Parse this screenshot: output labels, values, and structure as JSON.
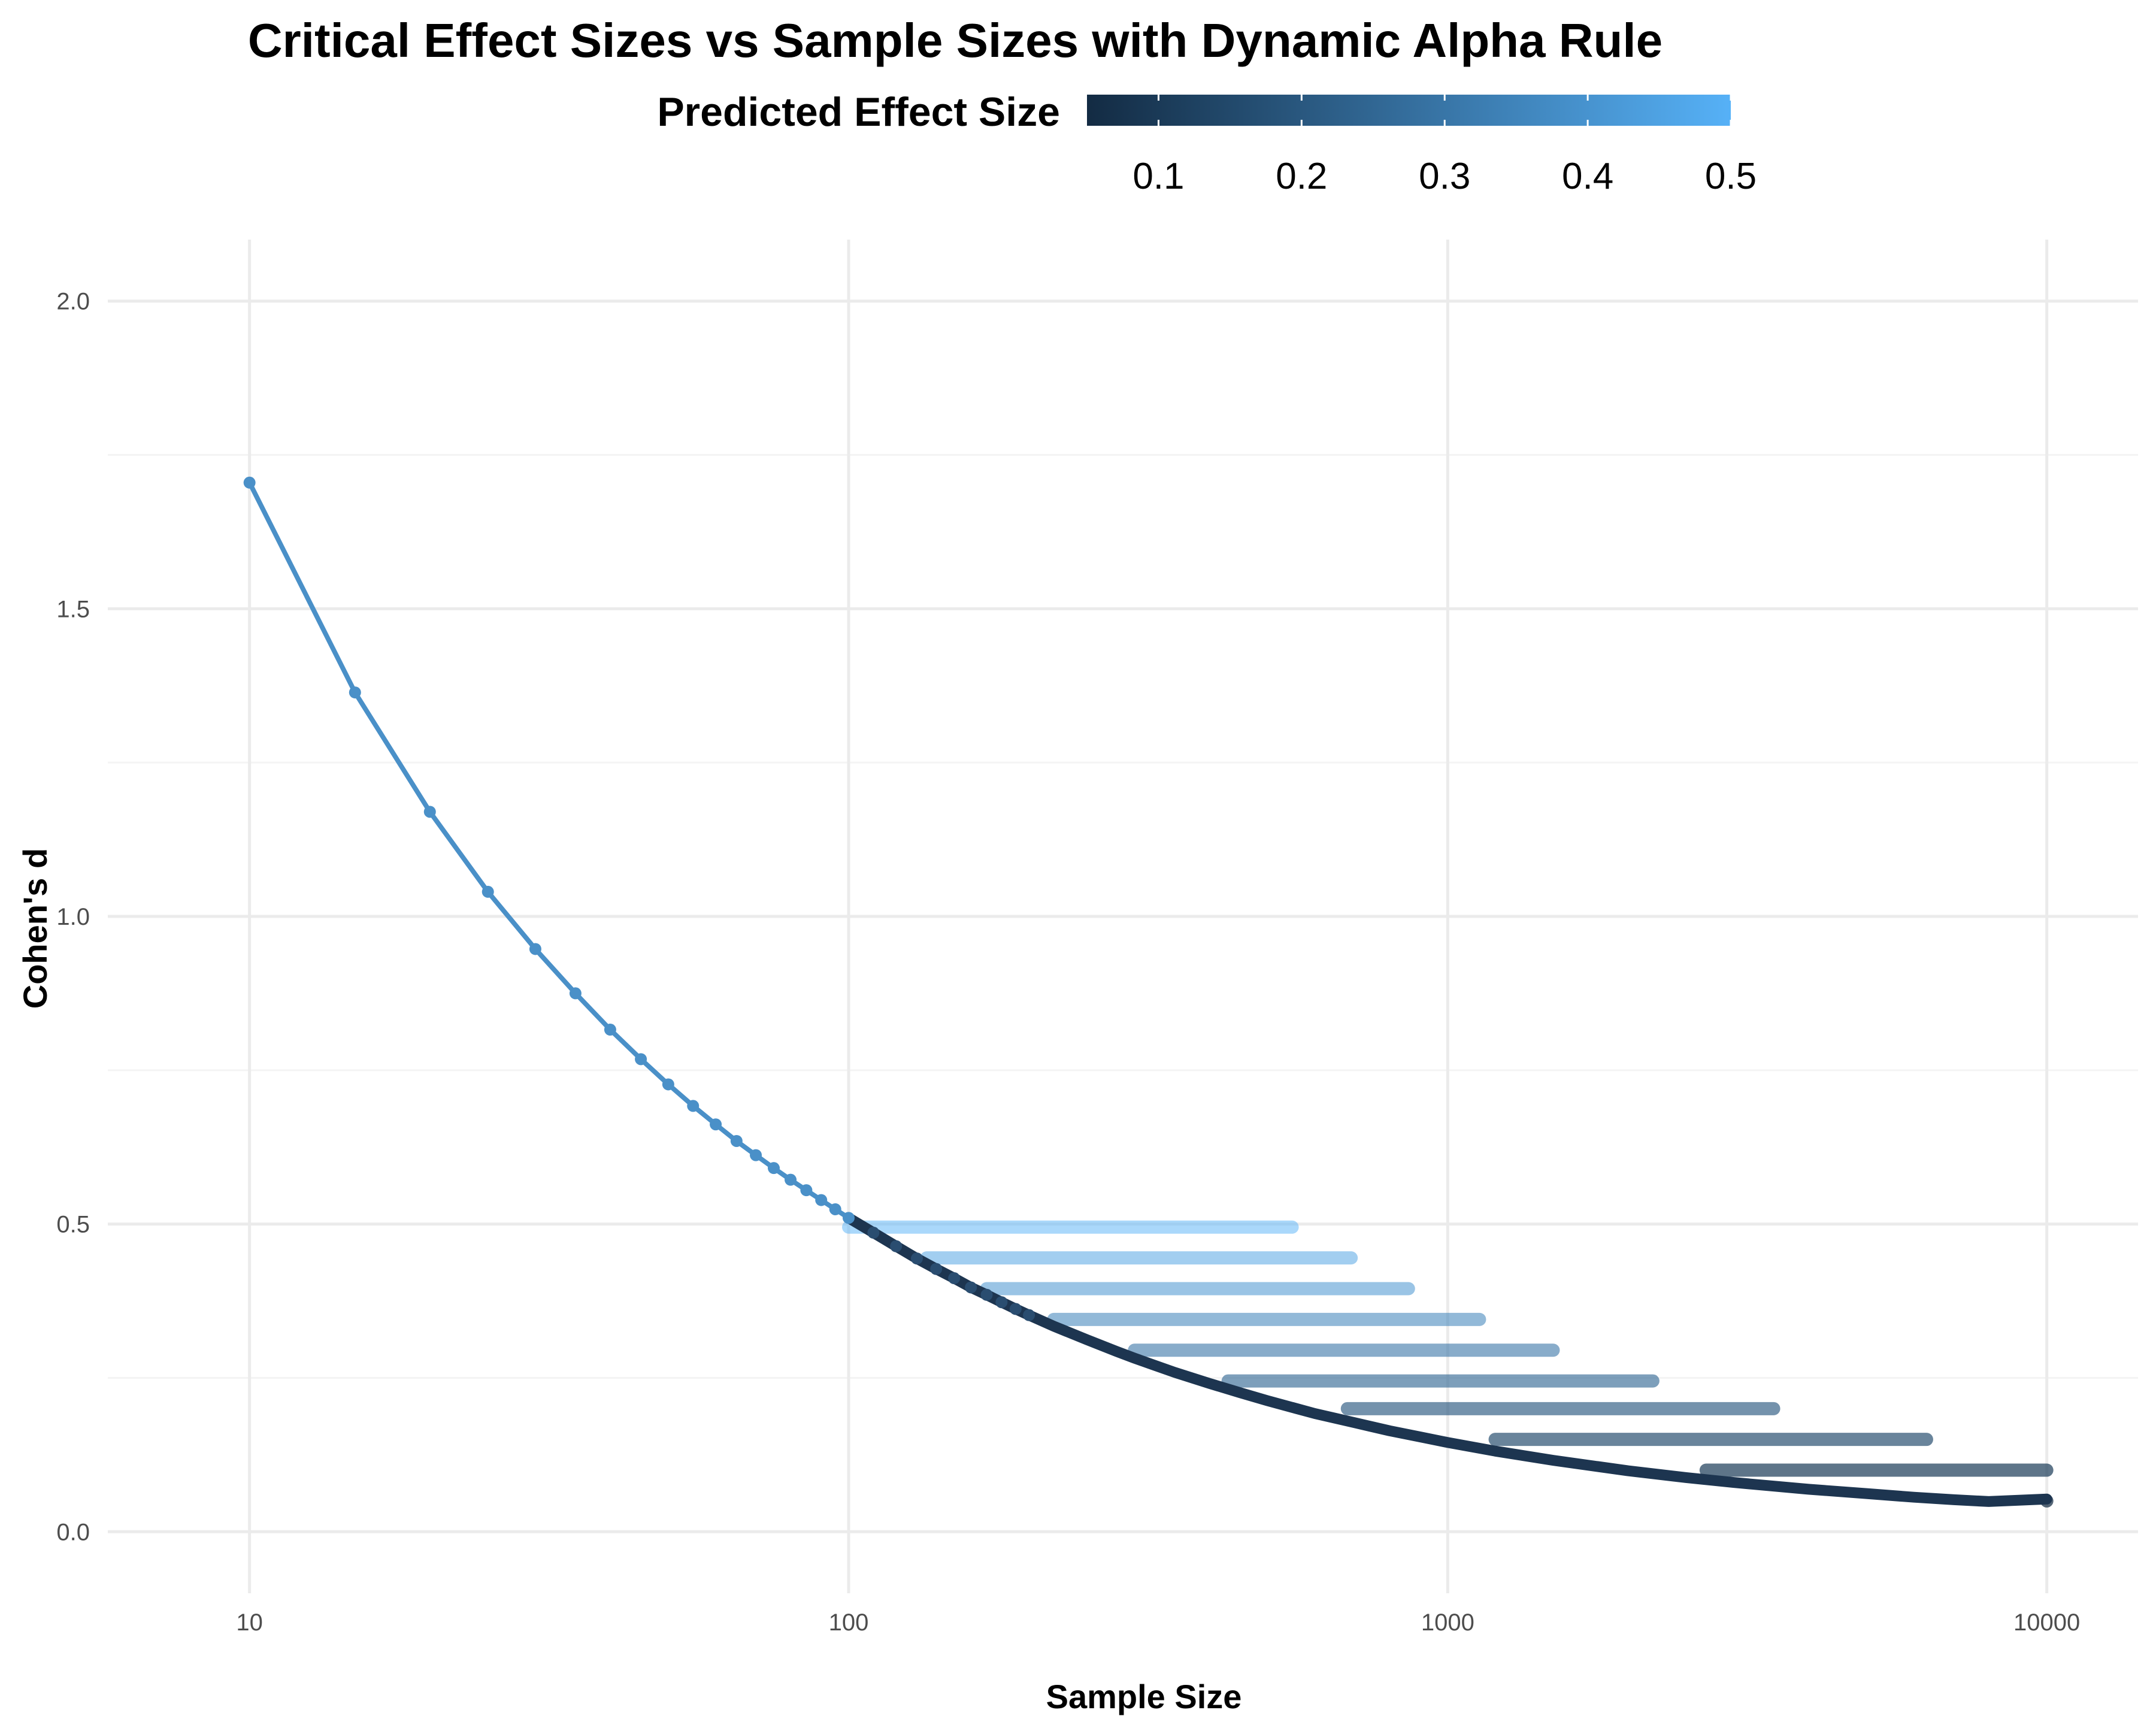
{
  "chart_data": {
    "type": "line",
    "title": "Critical Effect Sizes vs Sample Sizes with Dynamic Alpha Rule",
    "xlabel": "Sample Size",
    "ylabel": "Cohen's d",
    "x_scale": "log10",
    "xlim": [
      5.8,
      14200
    ],
    "ylim": [
      -0.1,
      2.1
    ],
    "x_ticks": [
      10,
      100,
      1000,
      10000
    ],
    "x_tick_labels": [
      "10",
      "100",
      "1000",
      "10000"
    ],
    "y_ticks": [
      0.0,
      0.5,
      1.0,
      1.5,
      2.0
    ],
    "y_tick_labels": [
      "0.0",
      "0.5",
      "1.0",
      "1.5",
      "2.0"
    ],
    "grid": true,
    "legend": {
      "title": "Predicted Effect Size",
      "placement": "top",
      "type": "colorbar",
      "range": [
        0.05,
        0.5
      ],
      "tick_values": [
        0.1,
        0.2,
        0.3,
        0.4,
        0.5
      ],
      "tick_labels": [
        "0.1",
        "0.2",
        "0.3",
        "0.4",
        "0.5"
      ],
      "colors": {
        "low": "#132B43",
        "high": "#56B1F7"
      }
    },
    "critical_curve": {
      "x": [
        10,
        15,
        20,
        25,
        30,
        35,
        40,
        45,
        50,
        55,
        60,
        65,
        70,
        75,
        80,
        85,
        90,
        95,
        100,
        110,
        120,
        130,
        140,
        150,
        160,
        170,
        180,
        190,
        200,
        220,
        250,
        280,
        300,
        350,
        400,
        450,
        500,
        600,
        700,
        800,
        900,
        1000,
        1200,
        1500,
        2000,
        2500,
        3000,
        4000,
        5000,
        6000,
        7000,
        8000,
        10000
      ],
      "y": [
        1.705,
        1.364,
        1.17,
        1.04,
        0.947,
        0.875,
        0.816,
        0.768,
        0.727,
        0.692,
        0.662,
        0.635,
        0.612,
        0.591,
        0.572,
        0.555,
        0.539,
        0.524,
        0.51,
        0.486,
        0.464,
        0.444,
        0.427,
        0.412,
        0.397,
        0.385,
        0.373,
        0.362,
        0.352,
        0.334,
        0.312,
        0.293,
        0.282,
        0.259,
        0.241,
        0.226,
        0.213,
        0.192,
        0.177,
        0.164,
        0.154,
        0.145,
        0.131,
        0.116,
        0.099,
        0.088,
        0.08,
        0.069,
        0.062,
        0.056,
        0.052,
        0.049,
        0.053
      ]
    },
    "threshold_lines": [
      {
        "effect": 0.05,
        "y": 0.05,
        "x_start": 10000,
        "x_end": 10000
      },
      {
        "effect": 0.1,
        "y": 0.1,
        "x_start": 2700,
        "x_end": 10000
      },
      {
        "effect": 0.15,
        "y": 0.15,
        "x_start": 1200,
        "x_end": 6300
      },
      {
        "effect": 0.2,
        "y": 0.2,
        "x_start": 680,
        "x_end": 3500
      },
      {
        "effect": 0.25,
        "y": 0.245,
        "x_start": 430,
        "x_end": 2200
      },
      {
        "effect": 0.3,
        "y": 0.295,
        "x_start": 300,
        "x_end": 1500
      },
      {
        "effect": 0.35,
        "y": 0.345,
        "x_start": 220,
        "x_end": 1130
      },
      {
        "effect": 0.4,
        "y": 0.395,
        "x_start": 170,
        "x_end": 860
      },
      {
        "effect": 0.45,
        "y": 0.445,
        "x_start": 135,
        "x_end": 690
      },
      {
        "effect": 0.5,
        "y": 0.495,
        "x_start": 100,
        "x_end": 550
      }
    ]
  }
}
